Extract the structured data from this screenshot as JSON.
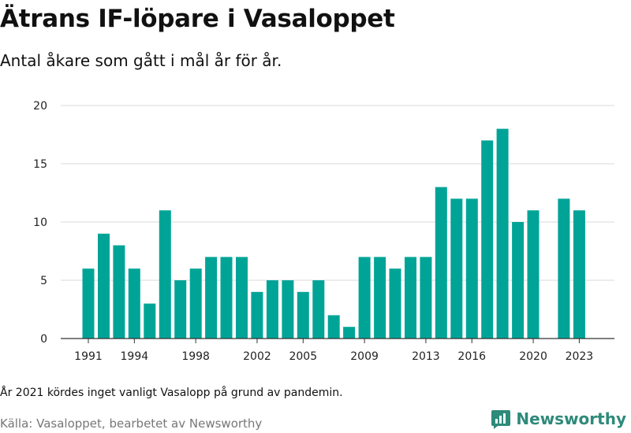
{
  "header": {
    "title": "Ätrans IF-löpare i Vasaloppet",
    "subtitle": "Antal åkare som gått i mål år för år."
  },
  "footer": {
    "note": "År 2021 kördes inget vanligt Vasalopp på grund av pandemin.",
    "source": "Källa: Vasaloppet, bearbetet av Newsworthy",
    "brand": "Newsworthy"
  },
  "colors": {
    "bar": "#00a497",
    "grid": "#d9d9d9",
    "brand": "#2e8a7a"
  },
  "chart_data": {
    "type": "bar",
    "title": "Ätrans IF-löpare i Vasaloppet",
    "subtitle": "Antal åkare som gått i mål år för år.",
    "xlabel": "",
    "ylabel": "",
    "ylim": [
      0,
      20
    ],
    "yticks": [
      0,
      5,
      10,
      15,
      20
    ],
    "grid": true,
    "legend": "none",
    "xtick_labels": [
      "1991",
      "1994",
      "1998",
      "2002",
      "2005",
      "2009",
      "2013",
      "2016",
      "2020",
      "2023"
    ],
    "categories": [
      1991,
      1992,
      1993,
      1994,
      1995,
      1996,
      1997,
      1998,
      1999,
      2000,
      2001,
      2002,
      2003,
      2004,
      2005,
      2006,
      2007,
      2008,
      2009,
      2010,
      2011,
      2012,
      2013,
      2014,
      2015,
      2016,
      2017,
      2018,
      2019,
      2020,
      2021,
      2022,
      2023
    ],
    "values": [
      6,
      9,
      8,
      6,
      3,
      11,
      5,
      6,
      7,
      7,
      7,
      4,
      5,
      5,
      4,
      5,
      2,
      1,
      7,
      7,
      6,
      7,
      7,
      13,
      12,
      12,
      17,
      18,
      10,
      11,
      null,
      12,
      11
    ]
  }
}
